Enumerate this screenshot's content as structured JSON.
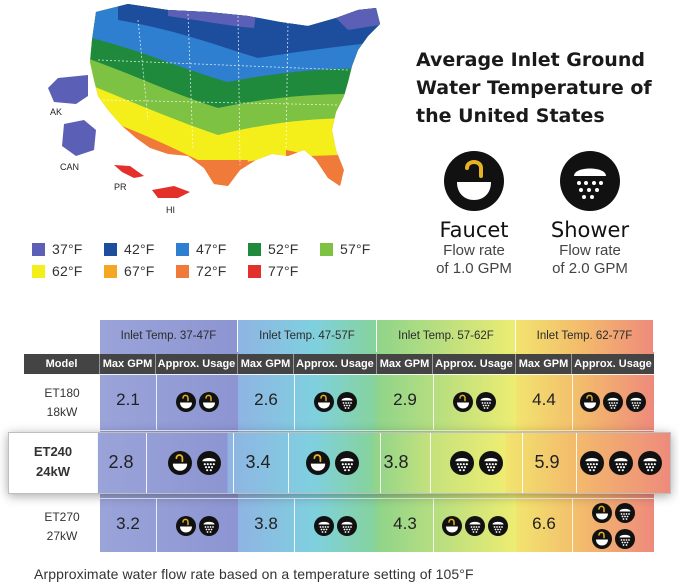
{
  "title": "Average Inlet Ground Water Temperature of the United States",
  "map_labels": {
    "ak": "AK",
    "can": "CAN",
    "pr": "PR",
    "hi": "HI"
  },
  "legend": [
    {
      "label": "37°F",
      "color": "#5b5fb6"
    },
    {
      "label": "42°F",
      "color": "#1d4e9e"
    },
    {
      "label": "47°F",
      "color": "#2f7fd1"
    },
    {
      "label": "52°F",
      "color": "#1f8a3c"
    },
    {
      "label": "57°F",
      "color": "#7dc242"
    },
    {
      "label": "62°F",
      "color": "#f4ef1a"
    },
    {
      "label": "67°F",
      "color": "#f5a623"
    },
    {
      "label": "72°F",
      "color": "#f07a3a"
    },
    {
      "label": "77°F",
      "color": "#e3302b"
    }
  ],
  "flow": {
    "faucet": {
      "name": "Faucet",
      "line1": "Flow rate",
      "line2": "of 1.0 GPM",
      "icon": "faucet-icon"
    },
    "shower": {
      "name": "Shower",
      "line1": "Flow rate",
      "line2": "of 2.0 GPM",
      "icon": "shower-icon"
    }
  },
  "table": {
    "bands": [
      "Inlet Temp. 37-47F",
      "Inlet Temp. 47-57F",
      "Inlet Temp. 57-62F",
      "Inlet Temp. 62-77F"
    ],
    "model_header": "Model",
    "max_gpm_header": "Max GPM",
    "usage_header": "Approx. Usage",
    "rows": [
      {
        "model": "ET180",
        "power": "18kW",
        "gpm": [
          "2.1",
          "2.6",
          "2.9",
          "4.4"
        ],
        "usage": [
          [
            "faucet",
            "faucet"
          ],
          [
            "faucet",
            "shower"
          ],
          [
            "faucet",
            "shower"
          ],
          [
            "faucet",
            "shower",
            "shower"
          ]
        ]
      },
      {
        "model": "ET240",
        "power": "24kW",
        "gpm": [
          "2.8",
          "3.4",
          "3.8",
          "5.9"
        ],
        "usage": [
          [
            "faucet",
            "shower"
          ],
          [
            "faucet",
            "shower"
          ],
          [
            "shower",
            "shower"
          ],
          [
            "shower",
            "shower",
            "shower"
          ]
        ]
      },
      {
        "model": "ET270",
        "power": "27kW",
        "gpm": [
          "3.2",
          "3.8",
          "4.3",
          "6.6"
        ],
        "usage": [
          [
            "faucet",
            "shower"
          ],
          [
            "shower",
            "shower"
          ],
          [
            "faucet",
            "shower",
            "shower"
          ],
          [
            "faucet",
            "shower",
            "faucet",
            "shower"
          ]
        ]
      }
    ]
  },
  "footnote": "Arpproximate water flow rate based on a temperature setting of 105°F"
}
